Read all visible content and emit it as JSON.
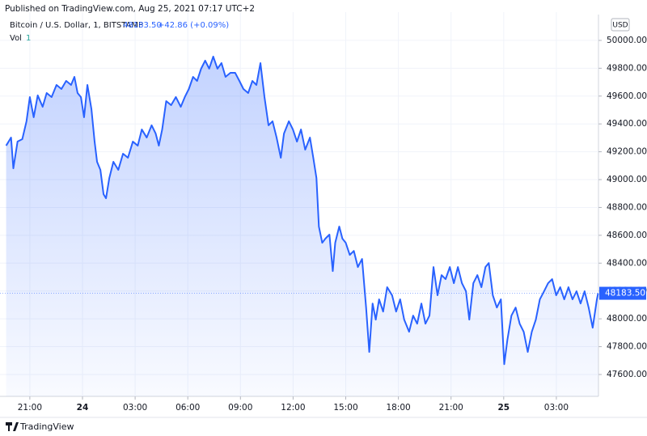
{
  "header": {
    "published": "Published on TradingView.com, Aug 25, 2021 07:17 UTC+2"
  },
  "chart_data": {
    "type": "area",
    "title": "Bitcoin / U.S. Dollar, 1, BITSTAMP",
    "last_price": {
      "value": 48183.5,
      "label": "48183.50"
    },
    "change": "+42.86 (+0.09%)",
    "volume_label": "Vol",
    "volume_value": "1",
    "currency": "USD",
    "color": "#2962ff",
    "grid": true,
    "xlim": [
      -4.7,
      29.4
    ],
    "ylim": [
      47443,
      50203
    ],
    "xticks": [
      {
        "value": -3,
        "label": "21:00"
      },
      {
        "value": 0,
        "label": "24"
      },
      {
        "value": 3,
        "label": "03:00"
      },
      {
        "value": 6,
        "label": "06:00"
      },
      {
        "value": 9,
        "label": "09:00"
      },
      {
        "value": 12,
        "label": "12:00"
      },
      {
        "value": 15,
        "label": "15:00"
      },
      {
        "value": 18,
        "label": "18:00"
      },
      {
        "value": 21,
        "label": "21:00"
      },
      {
        "value": 24,
        "label": "25"
      },
      {
        "value": 27,
        "label": "03:00"
      }
    ],
    "yticks": [
      {
        "value": 47600,
        "label": "47600.00"
      },
      {
        "value": 47800,
        "label": "47800.00"
      },
      {
        "value": 48000,
        "label": "48000.00"
      },
      {
        "value": 48200,
        "label": "48200.00"
      },
      {
        "value": 48400,
        "label": "48400.00"
      },
      {
        "value": 48600,
        "label": "48600.00"
      },
      {
        "value": 48800,
        "label": "48800.00"
      },
      {
        "value": 49000,
        "label": "49000.00"
      },
      {
        "value": 49200,
        "label": "49200.00"
      },
      {
        "value": 49400,
        "label": "49400.00"
      },
      {
        "value": 49600,
        "label": "49600.00"
      },
      {
        "value": 49800,
        "label": "49800.00"
      },
      {
        "value": 50000,
        "label": "50000.00"
      }
    ],
    "x": [
      -4.35,
      -4.07,
      -3.94,
      -3.7,
      -3.43,
      -3.19,
      -3.0,
      -2.78,
      -2.55,
      -2.27,
      -2.04,
      -1.76,
      -1.48,
      -1.2,
      -0.93,
      -0.65,
      -0.46,
      -0.28,
      -0.09,
      0.09,
      0.28,
      0.51,
      0.69,
      0.83,
      1.02,
      1.2,
      1.34,
      1.53,
      1.76,
      2.04,
      2.31,
      2.59,
      2.87,
      3.15,
      3.38,
      3.66,
      3.94,
      4.17,
      4.35,
      4.54,
      4.77,
      5.05,
      5.32,
      5.6,
      5.83,
      6.06,
      6.3,
      6.53,
      6.76,
      6.99,
      7.22,
      7.45,
      7.69,
      7.92,
      8.15,
      8.43,
      8.7,
      8.94,
      9.17,
      9.44,
      9.68,
      9.91,
      10.14,
      10.37,
      10.6,
      10.83,
      11.06,
      11.3,
      11.48,
      11.76,
      11.99,
      12.22,
      12.45,
      12.69,
      12.96,
      13.15,
      13.33,
      13.47,
      13.66,
      13.84,
      14.07,
      14.26,
      14.4,
      14.63,
      14.81,
      15.0,
      15.23,
      15.46,
      15.69,
      15.93,
      16.16,
      16.34,
      16.53,
      16.71,
      16.9,
      17.13,
      17.36,
      17.64,
      17.87,
      18.1,
      18.33,
      18.61,
      18.84,
      19.07,
      19.31,
      19.54,
      19.77,
      20.0,
      20.23,
      20.46,
      20.69,
      20.93,
      21.16,
      21.39,
      21.62,
      21.85,
      22.04,
      22.27,
      22.5,
      22.73,
      22.96,
      23.15,
      23.38,
      23.61,
      23.84,
      24.03,
      24.21,
      24.44,
      24.68,
      24.91,
      25.14,
      25.37,
      25.6,
      25.83,
      26.06,
      26.3,
      26.53,
      26.76,
      26.99,
      27.22,
      27.45,
      27.69,
      27.92,
      28.15,
      28.38,
      28.61,
      28.84,
      29.07,
      29.31,
      29.38
    ],
    "values": [
      49244,
      49302,
      49081,
      49273,
      49291,
      49419,
      49593,
      49448,
      49605,
      49523,
      49622,
      49593,
      49680,
      49651,
      49709,
      49680,
      49738,
      49622,
      49593,
      49448,
      49680,
      49506,
      49273,
      49128,
      49070,
      48895,
      48866,
      49012,
      49128,
      49070,
      49186,
      49157,
      49273,
      49244,
      49360,
      49302,
      49390,
      49331,
      49244,
      49360,
      49564,
      49535,
      49593,
      49523,
      49593,
      49651,
      49738,
      49709,
      49797,
      49855,
      49797,
      49884,
      49797,
      49837,
      49738,
      49767,
      49767,
      49709,
      49651,
      49622,
      49709,
      49680,
      49837,
      49593,
      49390,
      49419,
      49302,
      49157,
      49331,
      49419,
      49360,
      49273,
      49360,
      49215,
      49302,
      49157,
      49012,
      48663,
      48546,
      48576,
      48605,
      48343,
      48546,
      48663,
      48576,
      48546,
      48459,
      48488,
      48372,
      48430,
      48081,
      47762,
      48110,
      47994,
      48140,
      48052,
      48227,
      48169,
      48052,
      48140,
      47994,
      47907,
      48023,
      47965,
      48110,
      47965,
      48023,
      48372,
      48169,
      48314,
      48285,
      48372,
      48256,
      48372,
      48256,
      48198,
      47994,
      48256,
      48314,
      48227,
      48372,
      48401,
      48169,
      48081,
      48140,
      47674,
      47849,
      48023,
      48081,
      47965,
      47907,
      47762,
      47907,
      47994,
      48140,
      48198,
      48256,
      48285,
      48169,
      48227,
      48140,
      48227,
      48140,
      48198,
      48110,
      48198,
      48081,
      47936,
      48140,
      48183.5
    ]
  },
  "footer": {
    "brand": "TradingView"
  }
}
